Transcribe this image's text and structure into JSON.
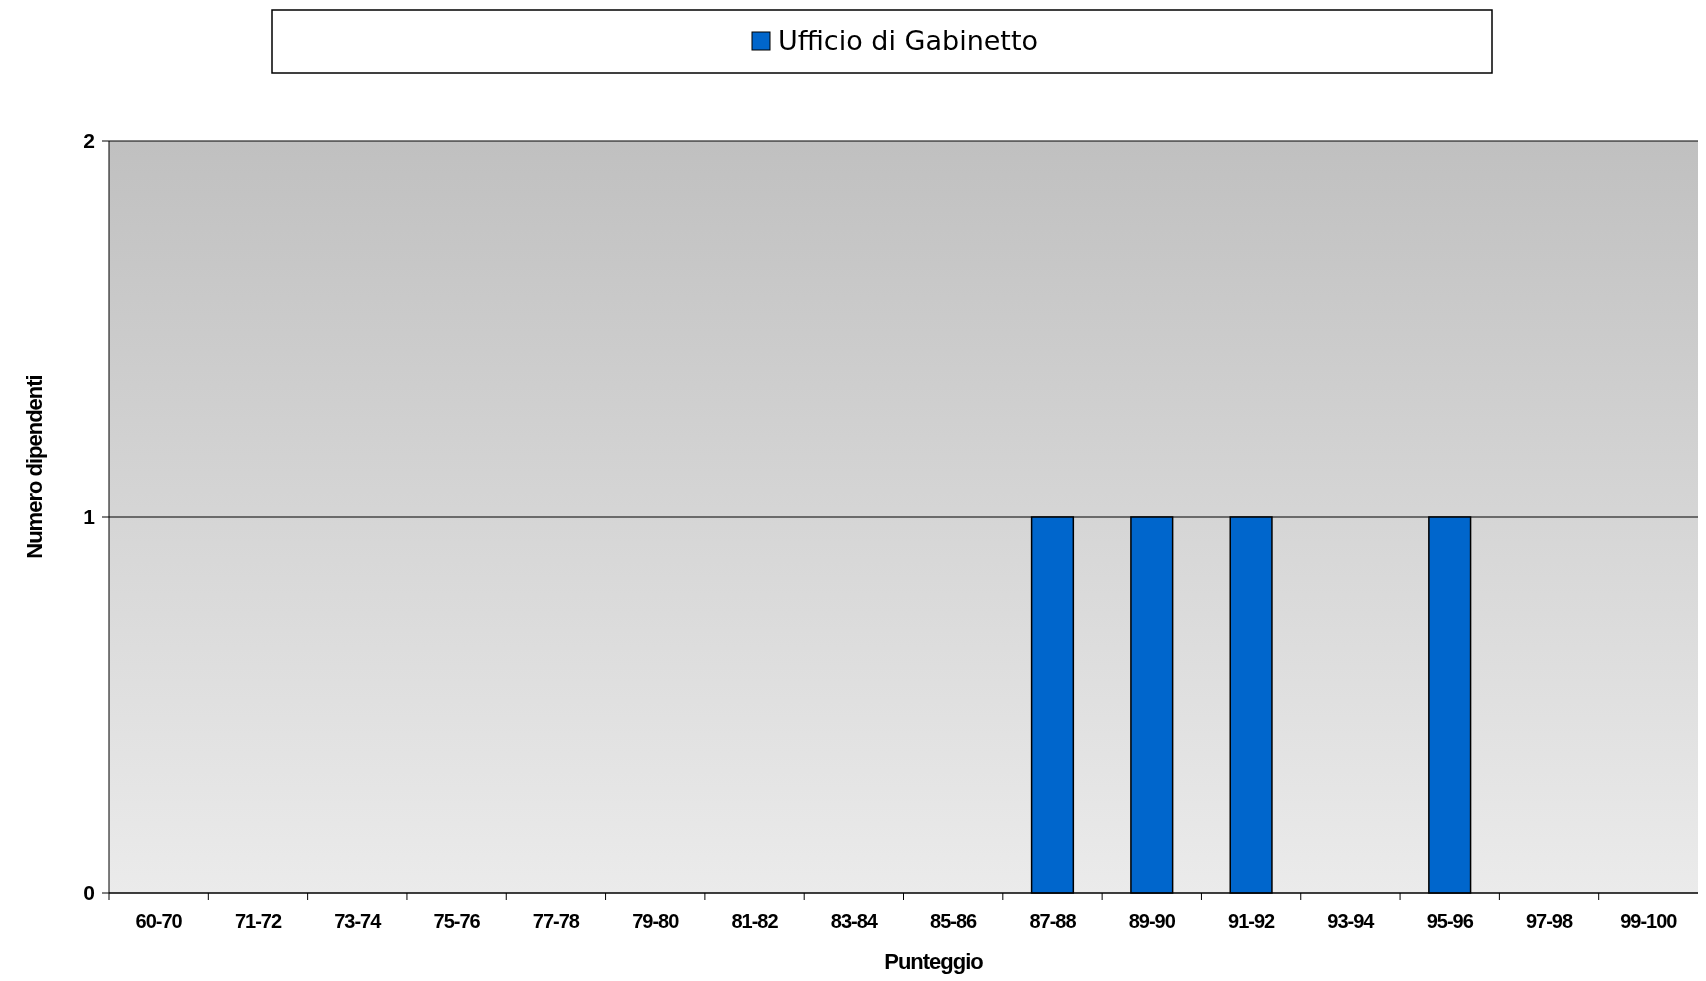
{
  "chart_data": {
    "type": "bar",
    "xlabel": "Punteggio",
    "ylabel": "Numero dipendenti",
    "categories": [
      "60-70",
      "71-72",
      "73-74",
      "75-76",
      "77-78",
      "79-80",
      "81-82",
      "83-84",
      "85-86",
      "87-88",
      "89-90",
      "91-92",
      "93-94",
      "95-96",
      "97-98",
      "99-100"
    ],
    "series": [
      {
        "name": "Ufficio di Gabinetto",
        "color": "#0066cc",
        "values": [
          0,
          0,
          0,
          0,
          0,
          0,
          0,
          0,
          0,
          1,
          1,
          1,
          0,
          1,
          0,
          0
        ]
      }
    ],
    "ylim": [
      0,
      2
    ],
    "yticks": [
      0,
      1,
      2
    ],
    "grid": "y",
    "legend": "top"
  }
}
